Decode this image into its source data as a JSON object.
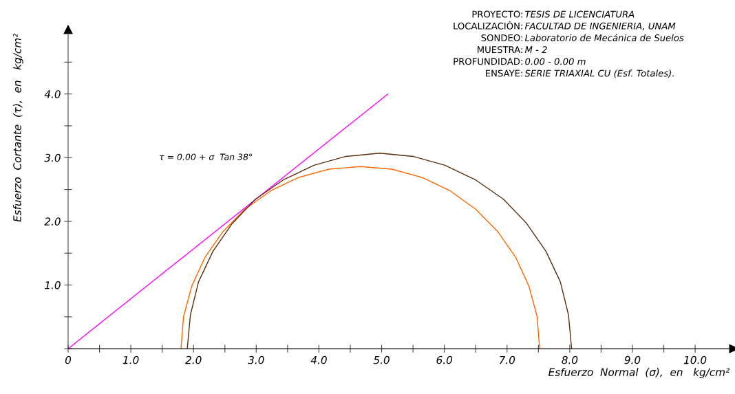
{
  "chart_data": {
    "type": "line",
    "xlabel": "Esfuerzo  Normal  (σ),  en   kg/cm²",
    "ylabel": "Esfuerzo  Cortante  (τ),  en   kg/cm²",
    "annotations": [
      "PROYECTO: TESIS DE LICENCIATURA",
      "LOCALIZACIÓN: FACULTAD DE INGENIERIA, UNAM",
      "SONDEO: Laboratorio de Mecánica de Suelos",
      "MUESTRA: M - 2",
      "PROFUNDIDAD: 0.00 - 0.00 m",
      "ENSAYE: SERIE TRIAXIAL CU (Esf. Totales).",
      "τ = 0.00 + σ  Tan 38°"
    ],
    "series": [
      {
        "color": "#ff00ff",
        "x": [
          0,
          5.1
        ],
        "values": [
          0,
          4.0
        ]
      },
      {
        "color": "#ff6600",
        "x": [
          7.52,
          7.48,
          7.35,
          7.14,
          6.85,
          6.5,
          6.09,
          5.64,
          5.16,
          4.66,
          4.16,
          3.68,
          3.23,
          2.82,
          2.47,
          2.18,
          1.97,
          1.84,
          1.8
        ],
        "values": [
          0,
          0.5,
          0.98,
          1.43,
          1.84,
          2.19,
          2.48,
          2.69,
          2.82,
          2.86,
          2.82,
          2.69,
          2.48,
          2.19,
          1.84,
          1.43,
          0.98,
          0.5,
          0
        ]
      },
      {
        "color": "#5a2d0a",
        "x": [
          8.03,
          7.98,
          7.85,
          7.62,
          7.31,
          6.94,
          6.5,
          6.01,
          5.5,
          4.97,
          4.43,
          3.92,
          3.43,
          2.99,
          2.62,
          2.31,
          2.08,
          1.95,
          1.9
        ],
        "values": [
          0,
          0.53,
          1.05,
          1.53,
          1.97,
          2.35,
          2.65,
          2.88,
          3.02,
          3.07,
          3.02,
          2.88,
          2.65,
          2.35,
          1.97,
          1.53,
          1.05,
          0.53,
          0
        ]
      }
    ],
    "xlim": [
      0,
      10.55
    ],
    "ylim": [
      0,
      4.95
    ],
    "xticks": [
      {
        "value": 0,
        "label": "0"
      },
      {
        "value": 0.5,
        "label": null
      },
      {
        "value": 1,
        "label": "1.0"
      },
      {
        "value": 1.5,
        "label": null
      },
      {
        "value": 2,
        "label": "2.0"
      },
      {
        "value": 2.5,
        "label": null
      },
      {
        "value": 3,
        "label": "3.0"
      },
      {
        "value": 3.5,
        "label": null
      },
      {
        "value": 4,
        "label": "4.0"
      },
      {
        "value": 4.5,
        "label": null
      },
      {
        "value": 5,
        "label": "5.0"
      },
      {
        "value": 5.5,
        "label": null
      },
      {
        "value": 6,
        "label": "6.0"
      },
      {
        "value": 6.5,
        "label": null
      },
      {
        "value": 7,
        "label": "7.0"
      },
      {
        "value": 7.5,
        "label": null
      },
      {
        "value": 8,
        "label": "8.0"
      },
      {
        "value": 8.5,
        "label": null
      },
      {
        "value": 9,
        "label": "9.0"
      },
      {
        "value": 9.5,
        "label": null
      },
      {
        "value": 10,
        "label": "10.0"
      }
    ],
    "yticks": [
      {
        "value": 0,
        "label": null
      },
      {
        "value": 0.5,
        "label": null
      },
      {
        "value": 1,
        "label": "1.0"
      },
      {
        "value": 1.5,
        "label": null
      },
      {
        "value": 2,
        "label": "2.0"
      },
      {
        "value": 2.5,
        "label": null
      },
      {
        "value": 3,
        "label": "3.0"
      },
      {
        "value": 3.5,
        "label": null
      },
      {
        "value": 4,
        "label": "4.0"
      },
      {
        "value": 4.5,
        "label": null
      }
    ],
    "grid": false,
    "marker": "none",
    "line_style": "solid"
  }
}
